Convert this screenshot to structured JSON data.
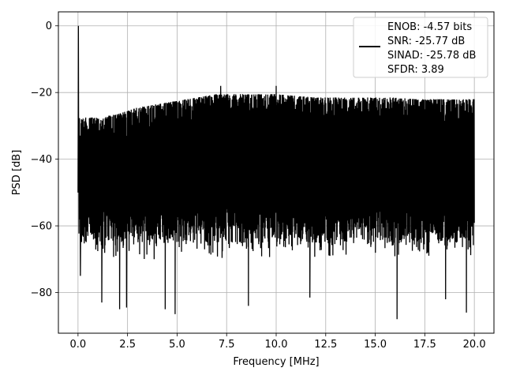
{
  "chart_data": {
    "type": "line",
    "title": "",
    "xlabel": "Frequency [MHz]",
    "ylabel": "PSD [dB]",
    "xlim": [
      -0.99,
      20.99
    ],
    "ylim": [
      -92.2,
      4.2
    ],
    "x_ticks": [
      0.0,
      2.5,
      5.0,
      7.5,
      10.0,
      12.5,
      15.0,
      17.5,
      20.0
    ],
    "x_tick_labels": [
      "0.0",
      "2.5",
      "5.0",
      "7.5",
      "10.0",
      "12.5",
      "15.0",
      "17.5",
      "20.0"
    ],
    "y_ticks": [
      0,
      -20,
      -40,
      -60,
      -80
    ],
    "y_tick_labels": [
      "0",
      "−20",
      "−40",
      "−60",
      "−80"
    ],
    "grid": true,
    "legend_position": "top-right",
    "series": [
      {
        "name": "ENOB: -4.57 bits\nSNR: -25.77 dB\nSINAD: -25.78 dB\nSFDR: 3.89",
        "color": "#000000",
        "x_range": [
          0.0,
          20.0
        ],
        "spike": {
          "x": 0.02,
          "y": 0.0
        },
        "upper_envelope": {
          "x": [
            0.0,
            1.0,
            2.0,
            3.0,
            4.0,
            5.0,
            6.0,
            7.0,
            8.0,
            9.0,
            10.0,
            11.0,
            12.0,
            13.0,
            14.0,
            15.0,
            16.0,
            17.0,
            18.0,
            19.0,
            20.0
          ],
          "y": [
            -27.5,
            -27.5,
            -26.5,
            -24.5,
            -23.5,
            -22.5,
            -21.5,
            -20.5,
            -20.5,
            -20.5,
            -20.5,
            -21.0,
            -21.5,
            -21.5,
            -21.5,
            -21.5,
            -21.5,
            -22.0,
            -22.0,
            -22.0,
            -22.0
          ]
        },
        "lower_envelope_y": -67,
        "notable_peaks": [
          {
            "x": 7.2,
            "y": -18.0
          },
          {
            "x": 10.0,
            "y": -18.0
          }
        ],
        "notable_dips": [
          {
            "x": 0.12,
            "y": -75.0
          },
          {
            "x": 1.2,
            "y": -83.0
          },
          {
            "x": 2.1,
            "y": -85.0
          },
          {
            "x": 2.45,
            "y": -84.5
          },
          {
            "x": 4.4,
            "y": -85.0
          },
          {
            "x": 4.9,
            "y": -86.5
          },
          {
            "x": 8.6,
            "y": -84.0
          },
          {
            "x": 11.7,
            "y": -81.5
          },
          {
            "x": 16.1,
            "y": -88.0
          },
          {
            "x": 18.55,
            "y": -82.0
          },
          {
            "x": 19.6,
            "y": -86.0
          }
        ]
      }
    ]
  }
}
